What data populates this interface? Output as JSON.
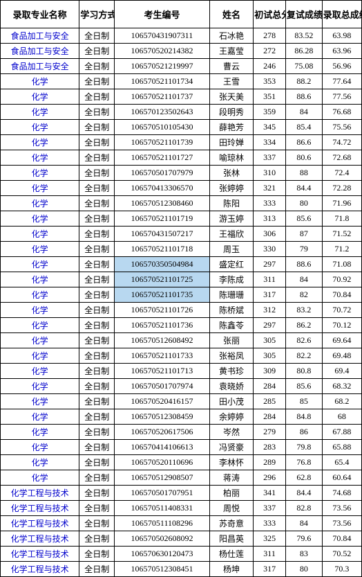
{
  "headers": [
    "录取专业名称",
    "学习方式",
    "考生编号",
    "姓名",
    "初试总分",
    "复试成绩",
    "录取总成绩"
  ],
  "rows": [
    {
      "major": "食品加工与安全",
      "mode": "全日制",
      "id": "106570431907311",
      "name": "石冰艳",
      "s1": "278",
      "s2": "83.52",
      "s3": "63.98",
      "hl": false
    },
    {
      "major": "食品加工与安全",
      "mode": "全日制",
      "id": "106570520214382",
      "name": "王嘉莹",
      "s1": "272",
      "s2": "86.28",
      "s3": "63.96",
      "hl": false
    },
    {
      "major": "食品加工与安全",
      "mode": "全日制",
      "id": "106570521219997",
      "name": "曹云",
      "s1": "246",
      "s2": "75.08",
      "s3": "56.96",
      "hl": false
    },
    {
      "major": "化学",
      "mode": "全日制",
      "id": "106570521101734",
      "name": "王雪",
      "s1": "353",
      "s2": "88.2",
      "s3": "77.64",
      "hl": false
    },
    {
      "major": "化学",
      "mode": "全日制",
      "id": "106570521101737",
      "name": "张天美",
      "s1": "351",
      "s2": "88.6",
      "s3": "77.56",
      "hl": false
    },
    {
      "major": "化学",
      "mode": "全日制",
      "id": "106570123502643",
      "name": "段明秀",
      "s1": "359",
      "s2": "84",
      "s3": "76.68",
      "hl": false
    },
    {
      "major": "化学",
      "mode": "全日制",
      "id": "106570510105430",
      "name": "薛艳芳",
      "s1": "345",
      "s2": "85.4",
      "s3": "75.56",
      "hl": false
    },
    {
      "major": "化学",
      "mode": "全日制",
      "id": "106570521101739",
      "name": "田玲婵",
      "s1": "334",
      "s2": "86.6",
      "s3": "74.72",
      "hl": false
    },
    {
      "major": "化学",
      "mode": "全日制",
      "id": "106570521101727",
      "name": "喻琼林",
      "s1": "337",
      "s2": "80.6",
      "s3": "72.68",
      "hl": false
    },
    {
      "major": "化学",
      "mode": "全日制",
      "id": "106570501707979",
      "name": "张林",
      "s1": "310",
      "s2": "88",
      "s3": "72.4",
      "hl": false
    },
    {
      "major": "化学",
      "mode": "全日制",
      "id": "106570413306570",
      "name": "张婷婷",
      "s1": "321",
      "s2": "84.4",
      "s3": "72.28",
      "hl": false
    },
    {
      "major": "化学",
      "mode": "全日制",
      "id": "106570512308460",
      "name": "陈阳",
      "s1": "333",
      "s2": "80",
      "s3": "71.96",
      "hl": false
    },
    {
      "major": "化学",
      "mode": "全日制",
      "id": "106570521101719",
      "name": "游玉婷",
      "s1": "313",
      "s2": "85.6",
      "s3": "71.8",
      "hl": false
    },
    {
      "major": "化学",
      "mode": "全日制",
      "id": "106570431507217",
      "name": "王福欣",
      "s1": "306",
      "s2": "87",
      "s3": "71.52",
      "hl": false
    },
    {
      "major": "化学",
      "mode": "全日制",
      "id": "106570521101718",
      "name": "周玉",
      "s1": "330",
      "s2": "79",
      "s3": "71.2",
      "hl": false
    },
    {
      "major": "化学",
      "mode": "全日制",
      "id": "106570350504984",
      "name": "盛定红",
      "s1": "297",
      "s2": "88.6",
      "s3": "71.08",
      "hl": true
    },
    {
      "major": "化学",
      "mode": "全日制",
      "id": "106570521101725",
      "name": "李陈成",
      "s1": "311",
      "s2": "84",
      "s3": "70.92",
      "hl": true
    },
    {
      "major": "化学",
      "mode": "全日制",
      "id": "106570521101735",
      "name": "陈珊珊",
      "s1": "317",
      "s2": "82",
      "s3": "70.84",
      "hl": true
    },
    {
      "major": "化学",
      "mode": "全日制",
      "id": "106570521101726",
      "name": "陈桥斌",
      "s1": "312",
      "s2": "83.2",
      "s3": "70.72",
      "hl": false
    },
    {
      "major": "化学",
      "mode": "全日制",
      "id": "106570521101736",
      "name": "陈鑫苓",
      "s1": "297",
      "s2": "86.2",
      "s3": "70.12",
      "hl": false
    },
    {
      "major": "化学",
      "mode": "全日制",
      "id": "106570512608492",
      "name": "张丽",
      "s1": "305",
      "s2": "82.6",
      "s3": "69.64",
      "hl": false
    },
    {
      "major": "化学",
      "mode": "全日制",
      "id": "106570521101733",
      "name": "张裕凤",
      "s1": "305",
      "s2": "82.2",
      "s3": "69.48",
      "hl": false
    },
    {
      "major": "化学",
      "mode": "全日制",
      "id": "106570521101713",
      "name": "黄书珍",
      "s1": "309",
      "s2": "80.8",
      "s3": "69.4",
      "hl": false
    },
    {
      "major": "化学",
      "mode": "全日制",
      "id": "106570501707974",
      "name": "袁晓娇",
      "s1": "284",
      "s2": "85.6",
      "s3": "68.32",
      "hl": false
    },
    {
      "major": "化学",
      "mode": "全日制",
      "id": "106570520416157",
      "name": "田小茂",
      "s1": "285",
      "s2": "85",
      "s3": "68.2",
      "hl": false
    },
    {
      "major": "化学",
      "mode": "全日制",
      "id": "106570512308459",
      "name": "余婷婷",
      "s1": "284",
      "s2": "84.8",
      "s3": "68",
      "hl": false
    },
    {
      "major": "化学",
      "mode": "全日制",
      "id": "106570520617506",
      "name": "岑然",
      "s1": "279",
      "s2": "86",
      "s3": "67.88",
      "hl": false
    },
    {
      "major": "化学",
      "mode": "全日制",
      "id": "106570414106613",
      "name": "冯贤豪",
      "s1": "283",
      "s2": "79.8",
      "s3": "65.88",
      "hl": false
    },
    {
      "major": "化学",
      "mode": "全日制",
      "id": "106570520110696",
      "name": "李林怀",
      "s1": "289",
      "s2": "76.8",
      "s3": "65.4",
      "hl": false
    },
    {
      "major": "化学",
      "mode": "全日制",
      "id": "106570512908507",
      "name": "蒋涛",
      "s1": "296",
      "s2": "62.8",
      "s3": "60.64",
      "hl": false
    },
    {
      "major": "化学工程与技术",
      "mode": "全日制",
      "id": "106570501707951",
      "name": "柏丽",
      "s1": "341",
      "s2": "84.4",
      "s3": "74.68",
      "hl": false
    },
    {
      "major": "化学工程与技术",
      "mode": "全日制",
      "id": "106570511408331",
      "name": "周悦",
      "s1": "337",
      "s2": "82.8",
      "s3": "73.56",
      "hl": false
    },
    {
      "major": "化学工程与技术",
      "mode": "全日制",
      "id": "106570511108296",
      "name": "苏奇意",
      "s1": "333",
      "s2": "84",
      "s3": "73.56",
      "hl": false
    },
    {
      "major": "化学工程与技术",
      "mode": "全日制",
      "id": "106570502608092",
      "name": "阳昌英",
      "s1": "325",
      "s2": "79.6",
      "s3": "70.84",
      "hl": false
    },
    {
      "major": "化学工程与技术",
      "mode": "全日制",
      "id": "106570630120473",
      "name": "杨仕莲",
      "s1": "311",
      "s2": "83",
      "s3": "70.52",
      "hl": false
    },
    {
      "major": "化学工程与技术",
      "mode": "全日制",
      "id": "106570512308451",
      "name": "杨坤",
      "s1": "317",
      "s2": "80",
      "s3": "70.3",
      "hl": false
    }
  ]
}
